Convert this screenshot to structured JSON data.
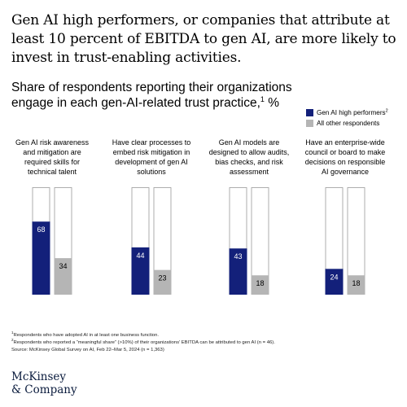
{
  "headline": "Gen AI high performers, or companies that attribute at least 10 percent of EBITDA to gen AI, are more likely to invest in trust-enabling activities.",
  "colors": {
    "high_performers": "#13207a",
    "all_other": "#b5b5b5",
    "bar_outline": "#9a9a9a"
  },
  "chart_data": {
    "type": "bar",
    "title": "Share of respondents reporting their organizations engage in each gen-AI-related trust practice,",
    "title_note": "1",
    "unit": "%",
    "ylim": [
      0,
      100
    ],
    "grid": false,
    "legend_position": "top-right",
    "categories": [
      "Gen AI risk awareness and mitigation are required skills for technical talent",
      "Have clear processes to embed risk mitigation in development of gen AI solutions",
      "Gen AI models are designed to allow audits, bias checks, and risk assessment",
      "Have an enterprise-wide council or board to make decisions on responsible AI governance"
    ],
    "series": [
      {
        "name": "Gen AI high performers",
        "note": "2",
        "values": [
          68,
          44,
          43,
          24
        ]
      },
      {
        "name": "All other respondents",
        "values": [
          34,
          23,
          18,
          18
        ]
      }
    ]
  },
  "footnotes": {
    "note1_marker": "1",
    "note1": "Respondents who have adopted AI in at least one business function.",
    "note2_marker": "2",
    "note2": "Respondents who reported a “meaningful share” (>10%) of their organizations’ EBITDA can be attributed to gen AI (n = 46).",
    "source": "Source: McKinsey Global Survey on AI, Feb 22–Mar 5, 2024 (n = 1,363)"
  },
  "logo": {
    "line1": "McKinsey",
    "line2": "& Company"
  }
}
